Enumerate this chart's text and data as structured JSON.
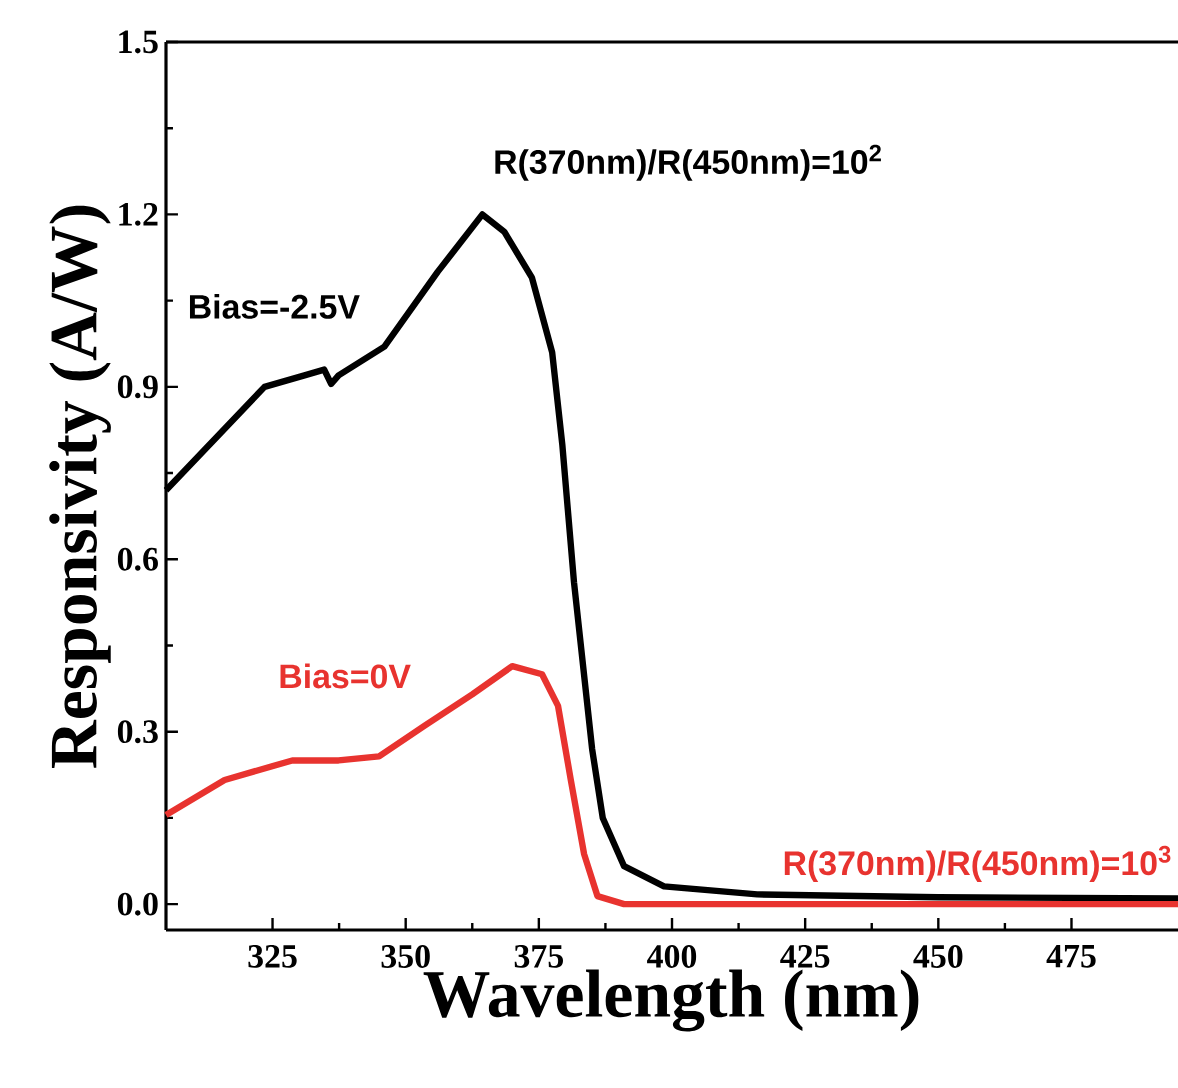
{
  "chart_data": {
    "type": "line",
    "xlabel": "Wavelength (nm)",
    "ylabel": "Responsivity (A/W)",
    "xlim": [
      305,
      495
    ],
    "ylim": [
      -0.045,
      1.5
    ],
    "xticks": [
      325,
      350,
      375,
      400,
      425,
      450,
      475
    ],
    "yticks": [
      {
        "value": 0,
        "label": "0.0"
      },
      0.3,
      0.6,
      0.9,
      1.2,
      1.5
    ],
    "grid": false,
    "legend": false,
    "marker": "none",
    "line_style": "solid",
    "annotations": [
      "R(370nm)/R(450nm)=10$^{2}$",
      "R(370nm)/R(450nm)=10$^{3}$"
    ],
    "series": [
      {
        "name": "Bias=-2.5V",
        "color": "#000000",
        "x": [
          305,
          323.5,
          331,
          334.7,
          336,
          337.4,
          346,
          356,
          364.4,
          368.5,
          373.7,
          377.5,
          379.4,
          381.6,
          385,
          387,
          391,
          398.5,
          416,
          450,
          495
        ],
        "values": [
          0.72,
          0.9,
          0.92,
          0.93,
          0.905,
          0.92,
          0.97,
          1.1,
          1.2,
          1.17,
          1.09,
          0.96,
          0.8,
          0.56,
          0.27,
          0.15,
          0.066,
          0.031,
          0.017,
          0.012,
          0.01
        ]
      },
      {
        "name": "Bias=0V",
        "color": "#e8332f",
        "x": [
          305,
          316,
          328.7,
          337.4,
          345,
          353.5,
          362.5,
          370,
          375.6,
          378.6,
          381,
          383.5,
          386,
          391,
          420,
          495
        ],
        "values": [
          0.155,
          0.216,
          0.25,
          0.25,
          0.257,
          0.31,
          0.365,
          0.414,
          0.4,
          0.345,
          0.216,
          0.087,
          0.014,
          0.0,
          0.0,
          0.0
        ]
      }
    ]
  }
}
